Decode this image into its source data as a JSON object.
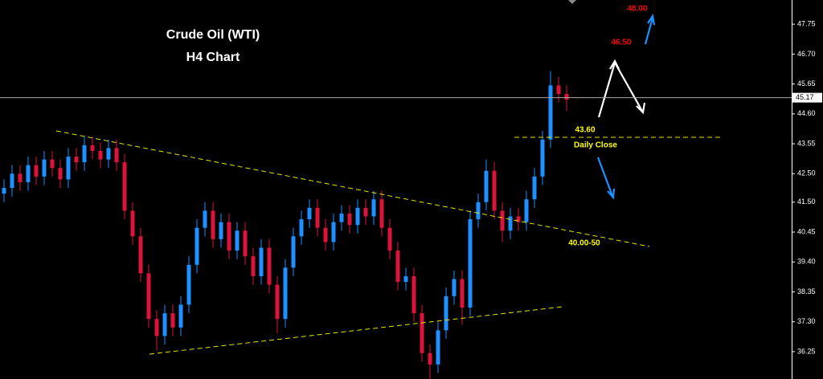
{
  "chart_data": {
    "type": "candlestick",
    "title": "Crude Oil (WTI)",
    "subtitle": "H4 Chart",
    "up_color": "#1e90ff",
    "down_color": "#dc143c",
    "open": [
      41.8,
      42.0,
      42.5,
      42.2,
      42.8,
      42.4,
      43.0,
      42.7,
      42.3,
      43.1,
      42.9,
      43.5,
      43.3,
      43.0,
      43.4,
      42.9,
      41.2,
      40.3,
      39.0,
      37.4,
      36.8,
      37.6,
      37.1,
      37.9,
      39.3,
      40.6,
      41.2,
      40.2,
      40.8,
      39.8,
      40.5,
      39.6,
      38.9,
      39.9,
      38.6,
      37.4,
      39.2,
      40.3,
      40.9,
      41.3,
      40.6,
      40.1,
      40.8,
      41.1,
      40.7,
      41.3,
      41.0,
      41.6,
      40.6,
      39.8,
      38.7,
      38.9,
      37.6,
      36.2,
      35.8,
      37.0,
      38.2,
      38.8,
      37.8,
      40.9,
      41.5,
      42.6,
      41.2,
      40.5,
      41.0,
      40.8,
      41.6,
      42.4,
      43.7,
      45.6,
      45.3
    ],
    "high": [
      42.3,
      42.8,
      42.8,
      43.1,
      43.1,
      43.3,
      43.3,
      43.0,
      43.4,
      43.4,
      43.8,
      43.8,
      43.6,
      43.7,
      43.7,
      43.2,
      41.5,
      40.6,
      39.3,
      37.7,
      37.9,
      37.9,
      38.2,
      39.6,
      40.9,
      41.5,
      41.5,
      41.1,
      41.1,
      40.8,
      40.8,
      39.9,
      40.2,
      40.2,
      38.9,
      39.5,
      40.6,
      41.2,
      41.6,
      41.6,
      40.9,
      41.1,
      41.4,
      41.4,
      41.6,
      41.6,
      41.9,
      41.9,
      40.9,
      40.1,
      39.2,
      39.2,
      37.9,
      36.5,
      37.3,
      38.5,
      39.1,
      39.1,
      41.2,
      41.8,
      43.0,
      42.9,
      41.5,
      41.3,
      41.3,
      41.9,
      42.7,
      44.0,
      46.1,
      45.9,
      45.6
    ],
    "low": [
      41.5,
      41.7,
      41.9,
      41.9,
      42.1,
      42.1,
      42.4,
      42.0,
      42.0,
      42.6,
      42.6,
      43.0,
      42.7,
      42.7,
      42.6,
      40.9,
      40.0,
      38.7,
      37.1,
      36.3,
      36.5,
      36.8,
      36.8,
      37.6,
      39.0,
      40.3,
      39.9,
      39.9,
      39.5,
      39.5,
      39.3,
      38.6,
      38.6,
      38.3,
      36.9,
      37.1,
      38.9,
      40.0,
      40.6,
      40.3,
      39.8,
      39.8,
      40.5,
      40.4,
      40.4,
      40.7,
      40.7,
      40.3,
      39.5,
      38.4,
      38.4,
      37.3,
      35.9,
      35.3,
      35.5,
      36.7,
      37.9,
      37.2,
      37.5,
      40.6,
      41.2,
      40.9,
      40.1,
      40.2,
      40.5,
      40.5,
      41.3,
      42.1,
      43.4,
      45.0,
      44.7
    ],
    "close": [
      42.0,
      42.5,
      42.2,
      42.8,
      42.4,
      43.0,
      42.7,
      42.3,
      43.1,
      42.9,
      43.5,
      43.3,
      43.0,
      43.4,
      42.9,
      41.2,
      40.3,
      39.0,
      37.4,
      36.8,
      37.6,
      37.1,
      37.9,
      39.3,
      40.6,
      41.2,
      40.2,
      40.8,
      39.8,
      40.5,
      39.6,
      38.9,
      39.9,
      38.6,
      37.4,
      39.2,
      40.3,
      40.9,
      41.3,
      40.6,
      40.1,
      40.8,
      41.1,
      40.7,
      41.3,
      41.0,
      41.6,
      40.6,
      39.8,
      38.7,
      38.9,
      37.6,
      36.2,
      35.8,
      37.0,
      38.2,
      38.8,
      37.8,
      40.9,
      41.5,
      42.6,
      41.2,
      40.5,
      41.0,
      40.8,
      41.6,
      42.4,
      43.7,
      45.6,
      45.3,
      45.1
    ],
    "current_price": 45.17,
    "ylim": [
      35.29,
      48.6
    ],
    "yticks": [
      47.75,
      {
        "value": 46.7,
        "label": "46.70"
      },
      45.65,
      {
        "value": 44.6,
        "label": "44.60"
      },
      43.55,
      {
        "value": 42.5,
        "label": "42.50"
      },
      {
        "value": 41.5,
        "label": "41.50"
      },
      40.45,
      {
        "value": 39.4,
        "label": "39.40"
      },
      38.35,
      {
        "value": 37.3,
        "label": "37.30"
      },
      36.25
    ],
    "annotations": [
      "48.00",
      "46.50",
      "43.60",
      "Daily Close",
      "40.00-50"
    ]
  }
}
